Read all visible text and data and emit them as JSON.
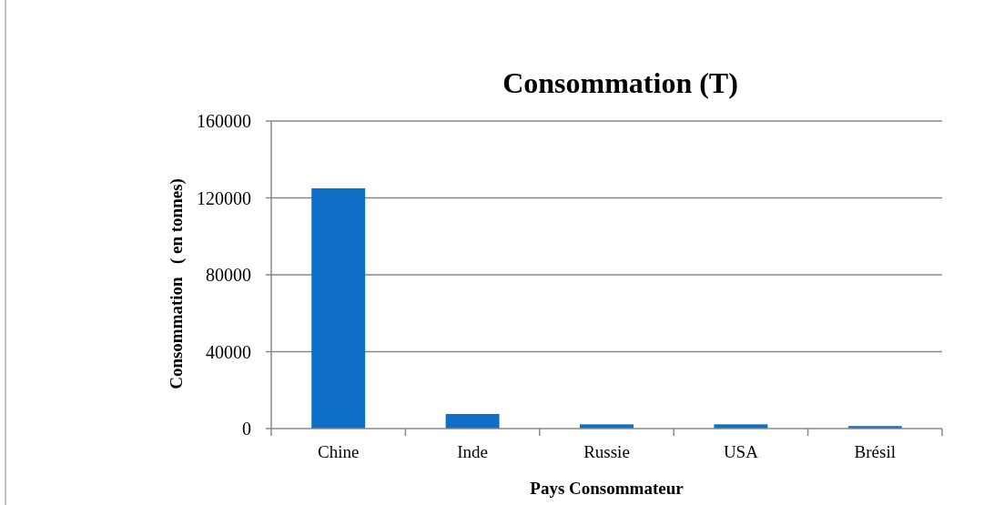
{
  "chart_data": {
    "type": "bar",
    "title": "Consommation (T)",
    "xlabel": "Pays Consommateur",
    "ylabel": "Consommation   ( en tonnes)",
    "categories": [
      "Chine",
      "Inde",
      "Russie",
      "USA",
      "Brésil"
    ],
    "values": [
      125000,
      7600,
      2200,
      2200,
      1300
    ],
    "color": "#0f6fc6",
    "ylim": [
      0,
      160000
    ],
    "yticks": [
      0,
      40000,
      80000,
      120000,
      160000
    ],
    "grid": "y"
  }
}
